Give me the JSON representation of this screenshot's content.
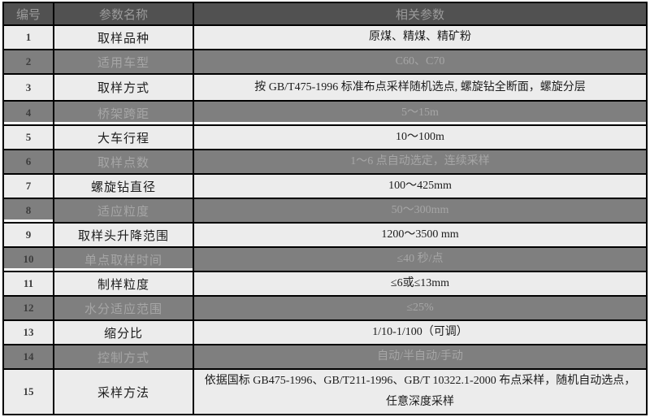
{
  "colors": {
    "header_bg": "#515151",
    "header_text": "#9a9a9a",
    "light_row_bg": "#ececec",
    "light_row_text": "#1c1c1c",
    "dark_row_bg": "#7f7f7f",
    "dark_row_text": "#a6a6a6",
    "row_number_text": "#3d3d3d",
    "border": "#000000"
  },
  "table": {
    "columns": [
      "编号",
      "参数名称",
      "相关参数"
    ],
    "rows": [
      {
        "no": "1",
        "name": "取样品种",
        "value": "原煤、精煤、精矿粉"
      },
      {
        "no": "2",
        "name": "适用车型",
        "value": "C60、C70"
      },
      {
        "no": "3",
        "name": "取样方式",
        "value": "按 GB/T475-1996 标准布点采样随机选点, 螺旋钻全断面，螺旋分层"
      },
      {
        "no": "4",
        "name": "桥架跨距",
        "value": "5～15m"
      },
      {
        "no": "5",
        "name": "大车行程",
        "value": "10～100m"
      },
      {
        "no": "6",
        "name": "取样点数",
        "value": "1～6 点自动选定，连续采样"
      },
      {
        "no": "7",
        "name": "螺旋钻直径",
        "value": "100～425mm"
      },
      {
        "no": "8",
        "name": "适应粒度",
        "value": "50～300mm"
      },
      {
        "no": "9",
        "name": "取样头升降范围",
        "value": "1200～3500 mm"
      },
      {
        "no": "10",
        "name": "单点取样时间",
        "value": "≤40 秒/点"
      },
      {
        "no": "11",
        "name": "制样粒度",
        "value": "≤6或≤13mm"
      },
      {
        "no": "12",
        "name": "水分适应范围",
        "value": "≤25%"
      },
      {
        "no": "13",
        "name": "缩分比",
        "value": "1/10-1/100（可调）"
      },
      {
        "no": "14",
        "name": "控制方式",
        "value": "自动/半自动/手动"
      },
      {
        "no": "15",
        "name": "采样方法",
        "value": "依据国标 GB475-1996、GB/T211-1996、GB/T 10322.1-2000 布点采样，随机自动选点，任意深度采样"
      }
    ]
  }
}
